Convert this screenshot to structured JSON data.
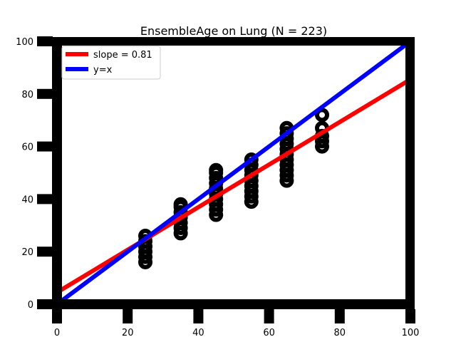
{
  "chart_data": {
    "type": "scatter",
    "title": "EnsembleAge on Lung (N = 223)",
    "xlabel": "",
    "ylabel": "",
    "xlim": [
      0,
      100
    ],
    "ylim": [
      0,
      100
    ],
    "xticks": [
      0,
      20,
      40,
      60,
      80,
      100
    ],
    "yticks": [
      0,
      20,
      40,
      60,
      80,
      100
    ],
    "grid": false,
    "legend_position": "top-left",
    "points": [
      [
        25,
        16
      ],
      [
        25,
        18
      ],
      [
        25,
        20
      ],
      [
        25,
        22
      ],
      [
        25,
        24
      ],
      [
        25,
        26
      ],
      [
        35,
        27
      ],
      [
        35,
        29
      ],
      [
        35,
        31
      ],
      [
        35,
        33
      ],
      [
        35,
        35
      ],
      [
        35,
        37
      ],
      [
        35,
        38
      ],
      [
        45,
        34
      ],
      [
        45,
        36
      ],
      [
        45,
        38
      ],
      [
        45,
        40
      ],
      [
        45,
        42
      ],
      [
        45,
        44
      ],
      [
        45,
        46
      ],
      [
        45,
        48
      ],
      [
        45,
        50
      ],
      [
        45,
        51
      ],
      [
        55,
        39
      ],
      [
        55,
        41
      ],
      [
        55,
        43
      ],
      [
        55,
        45
      ],
      [
        55,
        47
      ],
      [
        55,
        49
      ],
      [
        55,
        51
      ],
      [
        55,
        53
      ],
      [
        55,
        55
      ],
      [
        65,
        47
      ],
      [
        65,
        49
      ],
      [
        65,
        51
      ],
      [
        65,
        53
      ],
      [
        65,
        55
      ],
      [
        65,
        57
      ],
      [
        65,
        59
      ],
      [
        65,
        61
      ],
      [
        65,
        63
      ],
      [
        65,
        65
      ],
      [
        65,
        67
      ],
      [
        75,
        60
      ],
      [
        75,
        62
      ],
      [
        75,
        64
      ],
      [
        75,
        67
      ],
      [
        75,
        72
      ]
    ],
    "lines": [
      {
        "name": "slope = 0.81",
        "color": "#ff0000",
        "intercept": 4.5,
        "slope": 0.81
      },
      {
        "name": "y=x",
        "color": "#0000ff",
        "intercept": 0,
        "slope": 1.0
      }
    ]
  }
}
